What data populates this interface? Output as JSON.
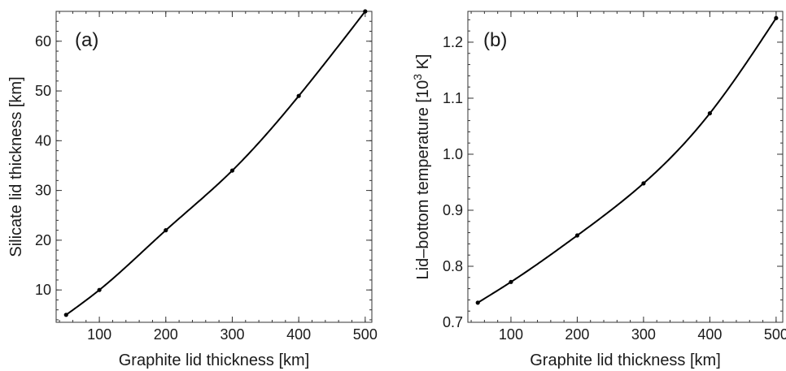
{
  "chart_data": [
    {
      "type": "line",
      "panel_label": "(a)",
      "xlabel": "Graphite lid thickness [km]",
      "ylabel": "Silicate lid thickness [km]",
      "ylabel_superscript": "",
      "ylabel_suffix": "",
      "xlim": [
        35,
        510
      ],
      "ylim": [
        3.5,
        66
      ],
      "xticks": [
        100,
        200,
        300,
        400,
        500
      ],
      "yticks": [
        10,
        20,
        30,
        40,
        50,
        60
      ],
      "ytick_labels": [
        "10",
        "20",
        "30",
        "40",
        "50",
        "60"
      ],
      "x_minor_step": 20,
      "y_minor_step": 2,
      "grid": false,
      "series": [
        {
          "x": [
            50,
            100,
            200,
            300,
            400,
            500
          ],
          "y": [
            5,
            10,
            22,
            34,
            49,
            66
          ]
        }
      ]
    },
    {
      "type": "line",
      "panel_label": "(b)",
      "xlabel": "Graphite lid thickness [km]",
      "ylabel": "Lid–bottom temperature [10",
      "ylabel_superscript": "3",
      "ylabel_suffix": " K]",
      "xlim": [
        35,
        510
      ],
      "ylim": [
        0.7,
        1.255
      ],
      "xticks": [
        100,
        200,
        300,
        400,
        500
      ],
      "yticks": [
        0.7,
        0.8,
        0.9,
        1.0,
        1.1,
        1.2
      ],
      "ytick_labels": [
        "0.7",
        "0.8",
        "0.9",
        "1.0",
        "1.1",
        "1.2"
      ],
      "x_minor_step": 20,
      "y_minor_step": 0.02,
      "grid": false,
      "series": [
        {
          "x": [
            50,
            100,
            200,
            300,
            400,
            500
          ],
          "y": [
            0.735,
            0.772,
            0.855,
            0.948,
            1.073,
            1.243
          ]
        }
      ]
    }
  ]
}
